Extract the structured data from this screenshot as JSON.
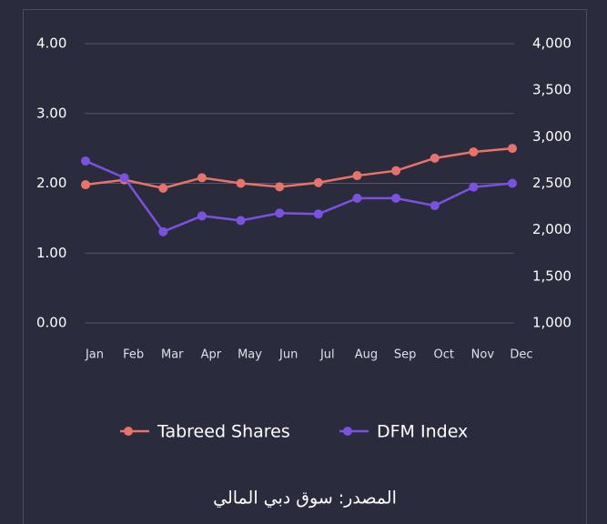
{
  "chart_data": {
    "type": "line",
    "categories": [
      "Jan",
      "Feb",
      "Mar",
      "Apr",
      "May",
      "Jun",
      "Jul",
      "Aug",
      "Sep",
      "Oct",
      "Nov",
      "Dec"
    ],
    "series": [
      {
        "name": "Tabreed Shares",
        "color": "#e8736b",
        "values": [
          1.98,
          2.05,
          1.93,
          2.08,
          2.0,
          1.95,
          2.01,
          2.11,
          2.18,
          2.36,
          2.45,
          2.5
        ]
      },
      {
        "name": "DFM Index",
        "color": "#7b52e0",
        "axis": "y2",
        "values": [
          2740,
          2560,
          1980,
          2150,
          2100,
          2180,
          2170,
          2340,
          2340,
          2260,
          2460,
          2500
        ]
      }
    ],
    "ylim": [
      0,
      4
    ],
    "yticks": [
      {
        "value": 0,
        "label": "0.00"
      },
      {
        "value": 1,
        "label": "1.00"
      },
      {
        "value": 2,
        "label": "2.00"
      },
      {
        "value": 3,
        "label": "3.00"
      },
      {
        "value": 4,
        "label": "4.00"
      }
    ],
    "y2lim": [
      1000,
      4000
    ],
    "y2ticks": [
      {
        "value": 1000,
        "label": "1,000"
      },
      {
        "value": 1500,
        "label": "1,500"
      },
      {
        "value": 2000,
        "label": "2,000"
      },
      {
        "value": 2500,
        "label": "2,500"
      },
      {
        "value": 3000,
        "label": "3,000"
      },
      {
        "value": 3500,
        "label": "3,500"
      },
      {
        "value": 4000,
        "label": "4,000"
      }
    ],
    "grid": true,
    "caption": "المصدر: سوق دبي المالي"
  }
}
